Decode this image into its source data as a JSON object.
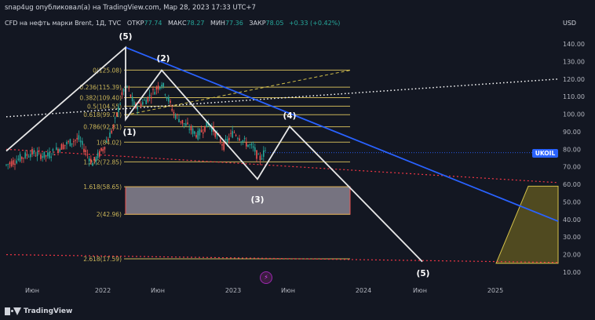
{
  "header": {
    "published": "snap4ug опубликовал(а) на TradingView.com, Мар 28, 2023 17:33 UTC+7"
  },
  "legend": {
    "symbol": "CFD на нефть марки Brent, 1Д, TVC",
    "open_label": "ОТКР",
    "open": "77.74",
    "high_label": "МАКС",
    "high": "78.27",
    "low_label": "МИН",
    "low": "77.36",
    "close_label": "ЗАКР",
    "close": "78.05",
    "change": "+0.33 (+0.42%)"
  },
  "currency": "USD",
  "ticker_badge": "UKOIL",
  "y_axis": {
    "min": 10,
    "max": 140,
    "ticks": [
      "140.00",
      "130.00",
      "120.00",
      "110.00",
      "100.00",
      "90.00",
      "80.00",
      "70.00",
      "60.00",
      "50.00",
      "40.00",
      "30.00",
      "20.00",
      "10.00"
    ]
  },
  "x_axis": {
    "ticks": [
      "Июн",
      "2022",
      "Июн",
      "2023",
      "Июн",
      "2024",
      "Июн",
      "2025"
    ]
  },
  "fib_levels": [
    {
      "label": "0(125.08)",
      "price": 125.08
    },
    {
      "label": "0.236(115.39)",
      "price": 115.39
    },
    {
      "label": "0.382(109.40)",
      "price": 109.4
    },
    {
      "label": "0.5(104.55)",
      "price": 104.55
    },
    {
      "label": "0.618(99.71)",
      "price": 99.71
    },
    {
      "label": "0.786(92.81)",
      "price": 92.81
    },
    {
      "label": "1(84.02)",
      "price": 84.02
    },
    {
      "label": "1.272(72.85)",
      "price": 72.85
    },
    {
      "label": "1.618(58.65)",
      "price": 58.65
    },
    {
      "label": "2(42.96)",
      "price": 42.96
    },
    {
      "label": "2.618(17.59)",
      "price": 17.59
    }
  ],
  "wave_labels": [
    "(5)",
    "(2)",
    "(1)",
    "(4)",
    "(3)",
    "(5)"
  ],
  "colors": {
    "background": "#131722",
    "axis_text": "#b2b5be",
    "candle_up": "#26a69a",
    "candle_down": "#ef5350",
    "fib_line": "#c9b458",
    "trend_blue": "#2962ff",
    "red_dotted": "#f23645",
    "wave_white": "#e8e8e8",
    "target_zone": "#c8c0ce",
    "yellow_zone": "#7a6d1f"
  },
  "brand": "TradingView"
}
